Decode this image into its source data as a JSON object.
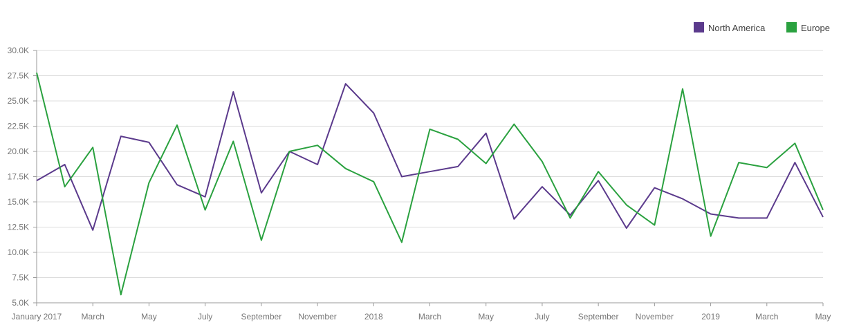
{
  "chart_data": {
    "type": "line",
    "legend_position": "top-right",
    "grid": true,
    "ylim": [
      5000,
      30000
    ],
    "y_ticks": [
      {
        "value": 5000,
        "label": "5.0K"
      },
      {
        "value": 7500,
        "label": "7.5K"
      },
      {
        "value": 10000,
        "label": "10.0K"
      },
      {
        "value": 12500,
        "label": "12.5K"
      },
      {
        "value": 15000,
        "label": "15.0K"
      },
      {
        "value": 17500,
        "label": "17.5K"
      },
      {
        "value": 20000,
        "label": "20.0K"
      },
      {
        "value": 22500,
        "label": "22.5K"
      },
      {
        "value": 25000,
        "label": "25.0K"
      },
      {
        "value": 27500,
        "label": "27.5K"
      },
      {
        "value": 30000,
        "label": "30.0K"
      }
    ],
    "x_ticks": [
      {
        "value": "2017-01",
        "label": "January 2017"
      },
      {
        "value": "2017-03",
        "label": "March"
      },
      {
        "value": "2017-05",
        "label": "May"
      },
      {
        "value": "2017-07",
        "label": "July"
      },
      {
        "value": "2017-09",
        "label": "September"
      },
      {
        "value": "2017-11",
        "label": "November"
      },
      {
        "value": "2018-01",
        "label": "2018"
      },
      {
        "value": "2018-03",
        "label": "March"
      },
      {
        "value": "2018-05",
        "label": "May"
      },
      {
        "value": "2018-07",
        "label": "July"
      },
      {
        "value": "2018-09",
        "label": "September"
      },
      {
        "value": "2018-11",
        "label": "November"
      },
      {
        "value": "2019-01",
        "label": "2019"
      },
      {
        "value": "2019-03",
        "label": "March"
      },
      {
        "value": "2019-05",
        "label": "May"
      }
    ],
    "x": [
      "2017-01",
      "2017-02",
      "2017-03",
      "2017-04",
      "2017-05",
      "2017-06",
      "2017-07",
      "2017-08",
      "2017-09",
      "2017-10",
      "2017-11",
      "2017-12",
      "2018-01",
      "2018-02",
      "2018-03",
      "2018-04",
      "2018-05",
      "2018-06",
      "2018-07",
      "2018-08",
      "2018-09",
      "2018-10",
      "2018-11",
      "2018-12",
      "2019-01",
      "2019-02",
      "2019-03",
      "2019-04",
      "2019-05"
    ],
    "series": [
      {
        "name": "North America",
        "color": "#5b3a8c",
        "values": [
          17100,
          18700,
          12200,
          21500,
          20900,
          16700,
          15500,
          25900,
          15900,
          20000,
          18700,
          26700,
          23800,
          17500,
          18000,
          18500,
          21800,
          13300,
          16500,
          13700,
          17100,
          12400,
          16400,
          15300,
          13800,
          13400,
          13400,
          18900,
          13500
        ]
      },
      {
        "name": "Europe",
        "color": "#2aa13f",
        "values": [
          27800,
          16500,
          20400,
          5800,
          16900,
          22600,
          14200,
          21000,
          11200,
          20000,
          20600,
          18300,
          17000,
          11000,
          22200,
          21200,
          18800,
          22700,
          19000,
          13400,
          18000,
          14700,
          12700,
          26200,
          11600,
          18900,
          18400,
          20800,
          14200
        ]
      }
    ]
  }
}
